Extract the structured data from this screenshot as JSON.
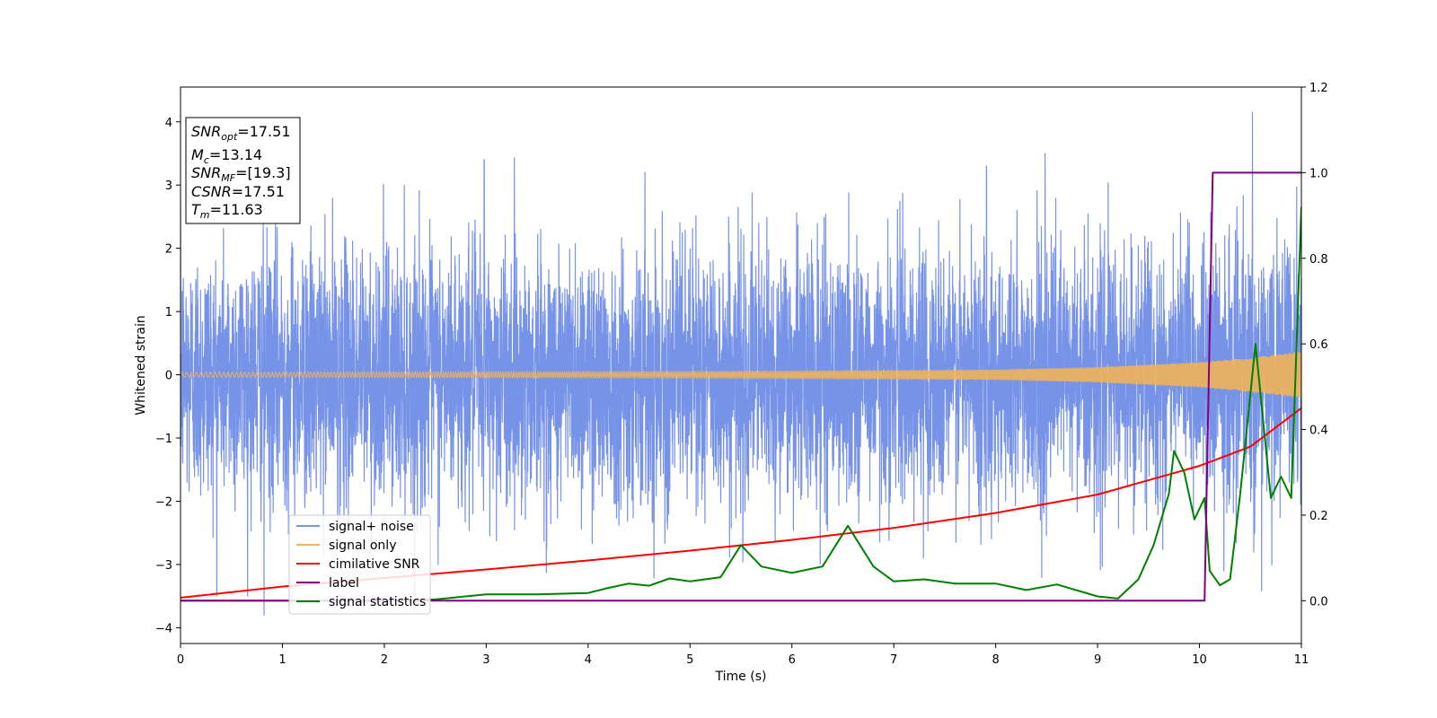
{
  "chart_data": {
    "type": "line",
    "xlabel": "Time (s)",
    "ylabel": "Whitened strain",
    "xlim": [
      0,
      11
    ],
    "ylim_left": [
      -4.25,
      4.55
    ],
    "ylim_right": [
      -0.1,
      1.2
    ],
    "x_ticks": [
      "0",
      "1",
      "2",
      "3",
      "4",
      "5",
      "6",
      "7",
      "8",
      "9",
      "10",
      "11"
    ],
    "y_ticks_left": [
      "−4",
      "−3",
      "−2",
      "−1",
      "0",
      "1",
      "2",
      "3",
      "4"
    ],
    "y_ticks_right": [
      "0.0",
      "0.2",
      "0.4",
      "0.6",
      "0.8",
      "1.0",
      "1.2"
    ],
    "annotation": {
      "snr_opt": {
        "name": "SNR",
        "sub": "opt",
        "value": "=17.51"
      },
      "mc": {
        "name": "M",
        "sub": "c",
        "value": "=13.14"
      },
      "snr_mf": {
        "name": "SNR",
        "sub": "MF",
        "value": "=[19.3]"
      },
      "csnr": {
        "name": "CSNR",
        "value": "=17.51"
      },
      "tm": {
        "name": "T",
        "sub": "m",
        "value": "=11.63"
      }
    },
    "legend": {
      "placement": "lower-left",
      "entries": [
        "signal+ noise",
        "signal only",
        "cimilative SNR",
        "label",
        "signal statistics"
      ]
    },
    "colors": {
      "signal_noise": "#7793e8",
      "signal_only": "#f0b45a",
      "cumulative_snr": "#ff0000",
      "label": "#800080",
      "signal_statistics": "#008000"
    },
    "series": [
      {
        "name": "signal+ noise",
        "axis": "left",
        "description_kind": "noise",
        "amplitude_sigma": 1.0,
        "x_range": [
          0,
          11
        ],
        "notable_peaks": [
          [
            0.82,
            -3.8
          ],
          [
            10.52,
            4.15
          ],
          [
            2.98,
            3.4
          ],
          [
            7.91,
            3.3
          ]
        ]
      },
      {
        "name": "signal only",
        "axis": "left",
        "x_range": [
          0,
          11
        ],
        "envelope": [
          [
            0,
            0.04
          ],
          [
            5,
            0.05
          ],
          [
            8,
            0.08
          ],
          [
            9,
            0.12
          ],
          [
            10,
            0.2
          ],
          [
            10.5,
            0.27
          ],
          [
            11,
            0.37
          ]
        ]
      },
      {
        "name": "cimilative SNR",
        "axis": "right",
        "points": [
          [
            0,
            0.007
          ],
          [
            1,
            0.033
          ],
          [
            2,
            0.053
          ],
          [
            3,
            0.073
          ],
          [
            4,
            0.094
          ],
          [
            5,
            0.117
          ],
          [
            6,
            0.142
          ],
          [
            7,
            0.17
          ],
          [
            8,
            0.205
          ],
          [
            9,
            0.248
          ],
          [
            10,
            0.315
          ],
          [
            10.5,
            0.36
          ],
          [
            11,
            0.45
          ]
        ]
      },
      {
        "name": "label",
        "axis": "right",
        "points": [
          [
            0,
            0
          ],
          [
            10.05,
            0
          ],
          [
            10.13,
            1.0
          ],
          [
            11,
            1.0
          ]
        ]
      },
      {
        "name": "signal statistics",
        "axis": "right",
        "points": [
          [
            0,
            0
          ],
          [
            2.0,
            0.0
          ],
          [
            2.5,
            0.003
          ],
          [
            3.0,
            0.015
          ],
          [
            3.5,
            0.015
          ],
          [
            4.0,
            0.018
          ],
          [
            4.2,
            0.03
          ],
          [
            4.4,
            0.04
          ],
          [
            4.6,
            0.035
          ],
          [
            4.8,
            0.052
          ],
          [
            5.0,
            0.045
          ],
          [
            5.3,
            0.055
          ],
          [
            5.5,
            0.13
          ],
          [
            5.7,
            0.08
          ],
          [
            6.0,
            0.065
          ],
          [
            6.3,
            0.08
          ],
          [
            6.55,
            0.175
          ],
          [
            6.8,
            0.08
          ],
          [
            7.0,
            0.045
          ],
          [
            7.3,
            0.05
          ],
          [
            7.6,
            0.04
          ],
          [
            8.0,
            0.04
          ],
          [
            8.3,
            0.025
          ],
          [
            8.6,
            0.038
          ],
          [
            9.0,
            0.01
          ],
          [
            9.2,
            0.005
          ],
          [
            9.4,
            0.05
          ],
          [
            9.55,
            0.13
          ],
          [
            9.7,
            0.25
          ],
          [
            9.75,
            0.35
          ],
          [
            9.85,
            0.3
          ],
          [
            9.95,
            0.19
          ],
          [
            10.05,
            0.24
          ],
          [
            10.1,
            0.07
          ],
          [
            10.2,
            0.036
          ],
          [
            10.3,
            0.05
          ],
          [
            10.4,
            0.25
          ],
          [
            10.55,
            0.6
          ],
          [
            10.7,
            0.24
          ],
          [
            10.8,
            0.29
          ],
          [
            10.9,
            0.24
          ],
          [
            11.0,
            0.92
          ]
        ]
      }
    ]
  }
}
